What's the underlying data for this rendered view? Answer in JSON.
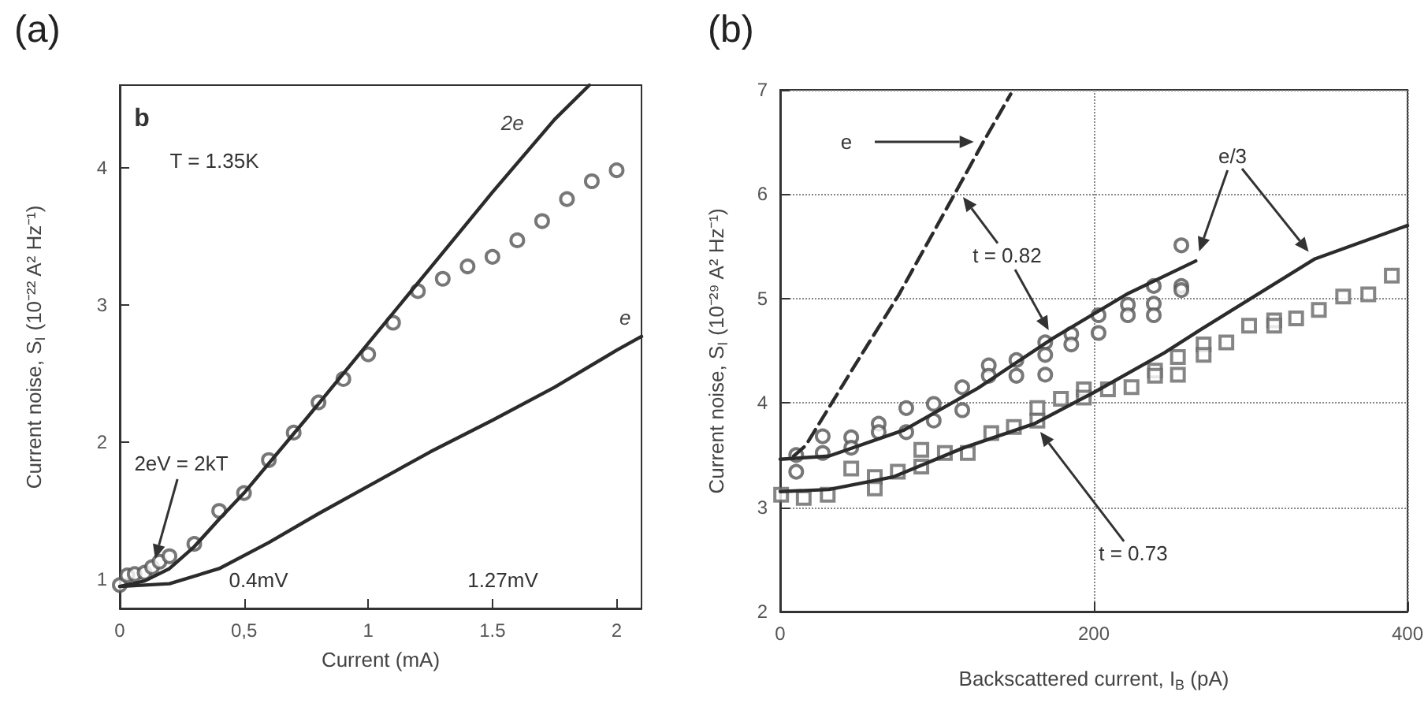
{
  "chart_data": [
    {
      "type": "line",
      "title": "(a)",
      "xlabel": "Current (mA)",
      "ylabel": "Current noise, S$_{I}$ (10⁻²² A² Hz⁻¹)",
      "xlim": [
        0,
        2.1
      ],
      "ylim": [
        0.79,
        4.6
      ],
      "xticks": [
        0,
        {
          "value": 0.5,
          "label": "0,5"
        },
        1,
        1.5,
        2
      ],
      "yticks": [
        1,
        2,
        3,
        4
      ],
      "annotations": [
        "b",
        "T = 1.35K",
        "2eV = 2kT",
        "0.4mV",
        "1.27mV"
      ],
      "series": [
        {
          "name": "2e",
          "color": "#2b2b2b",
          "marker": "none",
          "line_style": "solid",
          "x": [
            0,
            0.1,
            0.2,
            0.3,
            0.4,
            0.5,
            0.75,
            1,
            1.25,
            1.5,
            1.75,
            1.89
          ],
          "values": [
            0.95,
            0.99,
            1.08,
            1.24,
            1.44,
            1.63,
            2.17,
            2.72,
            3.27,
            3.82,
            4.35,
            4.6
          ]
        },
        {
          "name": "e",
          "color": "#2b2b2b",
          "marker": "none",
          "line_style": "solid",
          "x": [
            0,
            0.2,
            0.4,
            0.6,
            0.8,
            1.0,
            1.25,
            1.5,
            1.75,
            2.0,
            2.1
          ],
          "values": [
            0.95,
            0.97,
            1.08,
            1.27,
            1.48,
            1.68,
            1.93,
            2.16,
            2.4,
            2.67,
            2.77
          ]
        },
        {
          "type": "scatter",
          "color": "#555555",
          "marker": "circle",
          "x": [
            0,
            0.03,
            0.06,
            0.1,
            0.13,
            0.16,
            0.2,
            0.3,
            0.4,
            0.5,
            0.6,
            0.7,
            0.8,
            0.9,
            1.0,
            1.1,
            1.2,
            1.3,
            1.4,
            1.5,
            1.6,
            1.7,
            1.8,
            1.9,
            2.0
          ],
          "values": [
            0.96,
            1.03,
            1.04,
            1.05,
            1.09,
            1.13,
            1.17,
            1.26,
            1.5,
            1.63,
            1.87,
            2.07,
            2.29,
            2.46,
            2.64,
            2.87,
            3.1,
            3.19,
            3.28,
            3.35,
            3.47,
            3.61,
            3.77,
            3.9,
            3.98
          ]
        }
      ]
    },
    {
      "type": "line",
      "title": "(b)",
      "xlabel": "Backscattered current, I$_{B}$ (pA)",
      "ylabel": "Current noise, S$_{I}$ (10⁻²⁹ A² Hz⁻¹)",
      "xlim": [
        0,
        400
      ],
      "ylim": [
        2,
        7
      ],
      "xticks": [
        0,
        200,
        400
      ],
      "yticks": [
        2,
        3,
        4,
        5,
        6,
        7
      ],
      "grid": true,
      "annotations": [
        "e",
        "t = 0.82",
        "e/3",
        "t = 0.73"
      ],
      "series": [
        {
          "color": "#2b2b2b",
          "marker": "none",
          "line_style": "dashed",
          "x": [
            8.6,
            16.2,
            46.8,
            75.4,
            113,
            129.5,
            147
          ],
          "values": [
            3.49,
            3.59,
            4.34,
            5.03,
            6.05,
            6.5,
            6.96
          ]
        },
        {
          "color": "#2b2b2b",
          "marker": "none",
          "line_style": "solid",
          "x": [
            0,
            31,
            79,
            126,
            174,
            222,
            265
          ],
          "values": [
            3.46,
            3.49,
            3.74,
            4.14,
            4.62,
            5.05,
            5.36
          ]
        },
        {
          "type": "scatter",
          "color": "#555555",
          "marker": "circle",
          "x": [
            10.2,
            10.2,
            27.1,
            27.1,
            45.3,
            45.3,
            62.8,
            62.8,
            80.4,
            80.4,
            97.9,
            97.9,
            116.1,
            116.1,
            133,
            133,
            150.6,
            150.6,
            169,
            169,
            169,
            185.6,
            185.6,
            203,
            203,
            221.7,
            221.7,
            238.2,
            238.2,
            238.2,
            255.8,
            255.8,
            255.8
          ],
          "values": [
            3.5,
            3.34,
            3.68,
            3.52,
            3.67,
            3.57,
            3.8,
            3.72,
            3.95,
            3.72,
            3.99,
            3.83,
            4.15,
            3.93,
            4.36,
            4.26,
            4.41,
            4.26,
            4.58,
            4.46,
            4.27,
            4.66,
            4.56,
            4.84,
            4.67,
            4.94,
            4.84,
            5.12,
            4.95,
            4.84,
            5.51,
            5.12,
            5.08
          ]
        },
        {
          "color": "#2b2b2b",
          "marker": "none",
          "line_style": "solid",
          "x": [
            0,
            31,
            72,
            117,
            162,
            200,
            245,
            270,
            300,
            341,
            400
          ],
          "values": [
            3.15,
            3.17,
            3.29,
            3.57,
            3.8,
            4.1,
            4.48,
            4.72,
            5.0,
            5.38,
            5.7
          ]
        },
        {
          "type": "scatter",
          "color": "#666666",
          "marker": "square",
          "x": [
            0.6,
            15,
            30.3,
            45.3,
            60.3,
            60.3,
            75,
            90,
            90,
            105,
            119.6,
            134.6,
            149,
            164,
            164,
            179,
            193.6,
            193.6,
            209,
            224,
            239,
            239,
            253.6,
            253.6,
            270,
            270,
            284.5,
            299,
            315,
            315,
            329,
            343.5,
            359,
            375,
            390
          ],
          "values": [
            3.12,
            3.09,
            3.12,
            3.37,
            3.29,
            3.18,
            3.34,
            3.39,
            3.55,
            3.52,
            3.52,
            3.71,
            3.77,
            3.95,
            3.83,
            4.04,
            4.13,
            4.05,
            4.13,
            4.15,
            4.31,
            4.26,
            4.27,
            4.44,
            4.56,
            4.46,
            4.58,
            4.74,
            4.79,
            4.74,
            4.81,
            4.89,
            5.02,
            5.04,
            5.22
          ]
        }
      ]
    }
  ]
}
